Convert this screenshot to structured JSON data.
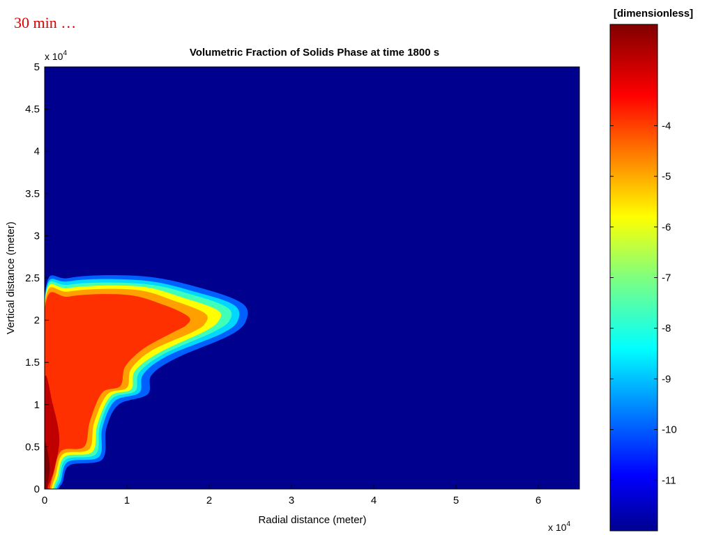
{
  "caption": "30 min …",
  "chart_data": {
    "type": "heatmap",
    "title": "Volumetric Fraction of Solids Phase at time 1800 s",
    "xlabel": "Radial distance (meter)",
    "ylabel": "Vertical distance (meter)",
    "x_multiplier": "x 10",
    "y_multiplier": "x 10",
    "exponent": "4",
    "xlim": [
      0,
      6.5
    ],
    "ylim": [
      0,
      5
    ],
    "x_ticks": [
      "0",
      "1",
      "2",
      "3",
      "4",
      "5",
      "6"
    ],
    "y_ticks": [
      "0",
      "0.5",
      "1",
      "1.5",
      "2",
      "2.5",
      "3",
      "3.5",
      "4",
      "4.5",
      "5"
    ],
    "background_color": "#00008f",
    "colorbar": {
      "label": "[dimensionless]",
      "range": [
        -12,
        -2
      ],
      "ticks": [
        "-4",
        "-5",
        "-6",
        "-7",
        "-8",
        "-9",
        "-10",
        "-11"
      ],
      "colormap": "jet"
    },
    "plume_levels": [
      {
        "level": -11,
        "color": "#0060ff",
        "outline": [
          [
            0,
            2.28
          ],
          [
            0.3,
            2.5
          ],
          [
            1.2,
            2.52
          ],
          [
            1.9,
            2.38
          ],
          [
            2.4,
            2.2
          ],
          [
            2.45,
            2.0
          ],
          [
            2.25,
            1.82
          ],
          [
            1.6,
            1.55
          ],
          [
            1.3,
            1.35
          ],
          [
            1.25,
            1.12
          ],
          [
            0.9,
            1.0
          ],
          [
            0.75,
            0.72
          ],
          [
            0.7,
            0.35
          ],
          [
            0.3,
            0.28
          ],
          [
            0.2,
            0.05
          ],
          [
            0,
            0
          ]
        ]
      },
      {
        "level": -9.5,
        "color": "#00d8ff",
        "outline": [
          [
            0,
            2.24
          ],
          [
            0.3,
            2.46
          ],
          [
            1.2,
            2.47
          ],
          [
            1.85,
            2.33
          ],
          [
            2.3,
            2.18
          ],
          [
            2.35,
            2.0
          ],
          [
            2.15,
            1.84
          ],
          [
            1.5,
            1.58
          ],
          [
            1.2,
            1.36
          ],
          [
            1.15,
            1.14
          ],
          [
            0.85,
            1.04
          ],
          [
            0.7,
            0.72
          ],
          [
            0.66,
            0.38
          ],
          [
            0.28,
            0.32
          ],
          [
            0.18,
            0.06
          ],
          [
            0,
            0
          ]
        ]
      },
      {
        "level": -8,
        "color": "#40ffb8",
        "outline": [
          [
            0,
            2.22
          ],
          [
            0.3,
            2.42
          ],
          [
            1.2,
            2.43
          ],
          [
            1.8,
            2.3
          ],
          [
            2.22,
            2.15
          ],
          [
            2.25,
            2.0
          ],
          [
            2.05,
            1.86
          ],
          [
            1.45,
            1.6
          ],
          [
            1.15,
            1.38
          ],
          [
            1.1,
            1.16
          ],
          [
            0.82,
            1.07
          ],
          [
            0.67,
            0.74
          ],
          [
            0.62,
            0.41
          ],
          [
            0.26,
            0.35
          ],
          [
            0.16,
            0.08
          ],
          [
            0,
            0
          ]
        ]
      },
      {
        "level": -6.5,
        "color": "#ffff00",
        "outline": [
          [
            0,
            2.2
          ],
          [
            0.3,
            2.38
          ],
          [
            1.15,
            2.4
          ],
          [
            1.7,
            2.26
          ],
          [
            2.1,
            2.12
          ],
          [
            2.12,
            2.0
          ],
          [
            1.95,
            1.87
          ],
          [
            1.4,
            1.62
          ],
          [
            1.1,
            1.4
          ],
          [
            1.05,
            1.18
          ],
          [
            0.8,
            1.1
          ],
          [
            0.64,
            0.76
          ],
          [
            0.58,
            0.44
          ],
          [
            0.24,
            0.38
          ],
          [
            0.14,
            0.1
          ],
          [
            0,
            0
          ]
        ]
      },
      {
        "level": -5.5,
        "color": "#ffa000",
        "outline": [
          [
            0,
            2.17
          ],
          [
            0.3,
            2.34
          ],
          [
            1.1,
            2.36
          ],
          [
            1.6,
            2.22
          ],
          [
            1.95,
            2.08
          ],
          [
            1.95,
            1.96
          ],
          [
            1.8,
            1.86
          ],
          [
            1.3,
            1.64
          ],
          [
            1.05,
            1.42
          ],
          [
            1.0,
            1.2
          ],
          [
            0.76,
            1.12
          ],
          [
            0.6,
            0.78
          ],
          [
            0.54,
            0.47
          ],
          [
            0.22,
            0.41
          ],
          [
            0.12,
            0.12
          ],
          [
            0,
            0
          ]
        ]
      },
      {
        "level": -4.5,
        "color": "#ff3000",
        "outline": [
          [
            0,
            2.12
          ],
          [
            0.3,
            2.28
          ],
          [
            1.0,
            2.3
          ],
          [
            1.45,
            2.18
          ],
          [
            1.75,
            2.04
          ],
          [
            1.72,
            1.94
          ],
          [
            1.55,
            1.85
          ],
          [
            1.2,
            1.66
          ],
          [
            0.98,
            1.45
          ],
          [
            0.92,
            1.22
          ],
          [
            0.7,
            1.14
          ],
          [
            0.55,
            0.8
          ],
          [
            0.48,
            0.5
          ],
          [
            0.2,
            0.45
          ],
          [
            0.1,
            0.15
          ],
          [
            0,
            0
          ]
        ]
      },
      {
        "level": -3.5,
        "color": "#c00000",
        "outline": [
          [
            0,
            1.3
          ],
          [
            0.1,
            1.0
          ],
          [
            0.18,
            0.6
          ],
          [
            0.12,
            0.25
          ],
          [
            0.05,
            0.05
          ],
          [
            0,
            0
          ]
        ]
      },
      {
        "level": -2.5,
        "color": "#800000",
        "outline": [
          [
            0,
            0.55
          ],
          [
            0.06,
            0.3
          ],
          [
            0.04,
            0.08
          ],
          [
            0,
            0
          ]
        ]
      }
    ]
  }
}
